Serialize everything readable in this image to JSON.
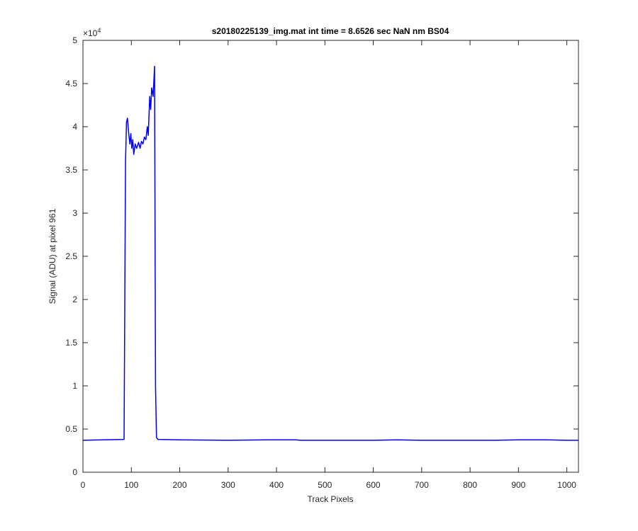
{
  "chart_data": {
    "type": "line",
    "title": "s20180225139_img.mat int time = 8.6526 sec  NaN nm BS04",
    "xlabel": "Track Pixels",
    "ylabel": "Signal (ADU) at pixel 961",
    "y_multiplier": {
      "base": "×10",
      "exponent": "4"
    },
    "color": "#0000ff",
    "x": [
      0,
      85,
      88,
      90,
      92,
      95,
      97,
      99,
      101,
      103,
      105,
      108,
      111,
      115,
      118,
      121,
      124,
      127,
      130,
      133,
      135,
      138,
      140,
      142,
      145,
      148,
      150,
      152,
      155,
      200,
      300,
      380,
      440,
      450,
      600,
      650,
      700,
      850,
      900,
      960,
      1000,
      1024
    ],
    "values": [
      3700,
      3800,
      36000,
      40500,
      41000,
      39000,
      38000,
      39200,
      37500,
      38500,
      36800,
      38000,
      37500,
      38200,
      37500,
      38300,
      38000,
      38800,
      38500,
      40000,
      39000,
      43500,
      42000,
      44500,
      43500,
      47000,
      10000,
      4000,
      3800,
      3750,
      3700,
      3750,
      3750,
      3700,
      3700,
      3750,
      3700,
      3700,
      3750,
      3750,
      3700,
      3700
    ],
    "xlim": [
      0,
      1024
    ],
    "xticks": [
      0,
      100,
      200,
      300,
      400,
      500,
      600,
      700,
      800,
      900,
      1000
    ],
    "ylim": [
      0,
      50000
    ],
    "yticks": [
      0,
      {
        "value": 5000,
        "label": "0.5"
      },
      {
        "value": 10000,
        "label": "1"
      },
      {
        "value": 15000,
        "label": "1.5"
      },
      {
        "value": 20000,
        "label": "2"
      },
      {
        "value": 25000,
        "label": "2.5"
      },
      {
        "value": 30000,
        "label": "3"
      },
      {
        "value": 35000,
        "label": "3.5"
      },
      {
        "value": 40000,
        "label": "4"
      },
      {
        "value": 45000,
        "label": "4.5"
      },
      {
        "value": 50000,
        "label": "5"
      }
    ]
  }
}
